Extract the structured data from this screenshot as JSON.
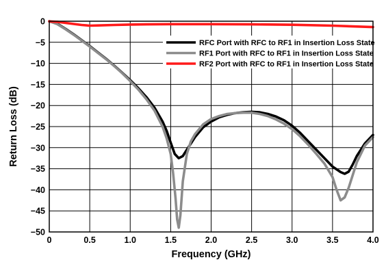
{
  "chart_data": {
    "type": "line",
    "title": "",
    "xlabel": "Frequency (GHz)",
    "ylabel": "Return Loss (dB)",
    "xlim": [
      0,
      4.0
    ],
    "ylim": [
      -50,
      0
    ],
    "x_ticks": [
      "0",
      "0.5",
      "1.0",
      "1.5",
      "2.0",
      "2.5",
      "3.0",
      "3.5",
      "4.0"
    ],
    "y_ticks": [
      "0",
      "−5",
      "−10",
      "−15",
      "−20",
      "−25",
      "−30",
      "−35",
      "−40",
      "−45",
      "−50"
    ],
    "grid": true,
    "legend_position": "top-right",
    "series": [
      {
        "name": "RFC Port with RFC to RF1 in Insertion Loss State",
        "color": "#000000",
        "points": [
          [
            0,
            0
          ],
          [
            0.1,
            -0.6
          ],
          [
            0.2,
            -1.8
          ],
          [
            0.3,
            -3.1
          ],
          [
            0.4,
            -4.5
          ],
          [
            0.5,
            -5.9
          ],
          [
            0.6,
            -7.4
          ],
          [
            0.7,
            -8.9
          ],
          [
            0.8,
            -10.5
          ],
          [
            0.9,
            -12.2
          ],
          [
            1.0,
            -14.0
          ],
          [
            1.1,
            -15.9
          ],
          [
            1.2,
            -18.0
          ],
          [
            1.3,
            -20.5
          ],
          [
            1.4,
            -23.8
          ],
          [
            1.45,
            -26.0
          ],
          [
            1.5,
            -28.8
          ],
          [
            1.55,
            -31.5
          ],
          [
            1.6,
            -32.5
          ],
          [
            1.65,
            -32.0
          ],
          [
            1.7,
            -30.5
          ],
          [
            1.8,
            -27.5
          ],
          [
            1.9,
            -25.2
          ],
          [
            2.0,
            -23.8
          ],
          [
            2.1,
            -22.8
          ],
          [
            2.2,
            -22.2
          ],
          [
            2.3,
            -21.8
          ],
          [
            2.4,
            -21.6
          ],
          [
            2.5,
            -21.5
          ],
          [
            2.6,
            -21.6
          ],
          [
            2.7,
            -22.0
          ],
          [
            2.8,
            -22.6
          ],
          [
            2.9,
            -23.5
          ],
          [
            3.0,
            -24.8
          ],
          [
            3.1,
            -26.5
          ],
          [
            3.2,
            -28.5
          ],
          [
            3.3,
            -30.5
          ],
          [
            3.4,
            -32.5
          ],
          [
            3.5,
            -34.5
          ],
          [
            3.6,
            -35.8
          ],
          [
            3.65,
            -36.2
          ],
          [
            3.7,
            -35.7
          ],
          [
            3.75,
            -34.0
          ],
          [
            3.8,
            -32.0
          ],
          [
            3.9,
            -29.0
          ],
          [
            4.0,
            -27.0
          ]
        ]
      },
      {
        "name": "RF1 Port with RFC to RF1 in Insertion Loss State",
        "color": "#8c8c8c",
        "points": [
          [
            0,
            0
          ],
          [
            0.1,
            -0.7
          ],
          [
            0.2,
            -1.9
          ],
          [
            0.3,
            -3.2
          ],
          [
            0.4,
            -4.6
          ],
          [
            0.5,
            -6.0
          ],
          [
            0.6,
            -7.5
          ],
          [
            0.7,
            -9.0
          ],
          [
            0.8,
            -10.6
          ],
          [
            0.9,
            -12.3
          ],
          [
            1.0,
            -14.2
          ],
          [
            1.1,
            -16.2
          ],
          [
            1.2,
            -18.5
          ],
          [
            1.3,
            -21.2
          ],
          [
            1.4,
            -25.0
          ],
          [
            1.45,
            -27.8
          ],
          [
            1.5,
            -31.5
          ],
          [
            1.53,
            -36.0
          ],
          [
            1.56,
            -42.0
          ],
          [
            1.58,
            -47.0
          ],
          [
            1.6,
            -49.0
          ],
          [
            1.62,
            -46.0
          ],
          [
            1.65,
            -38.0
          ],
          [
            1.7,
            -31.5
          ],
          [
            1.75,
            -28.5
          ],
          [
            1.8,
            -26.8
          ],
          [
            1.9,
            -24.5
          ],
          [
            2.0,
            -23.2
          ],
          [
            2.1,
            -22.5
          ],
          [
            2.2,
            -22.0
          ],
          [
            2.3,
            -21.8
          ],
          [
            2.4,
            -21.7
          ],
          [
            2.5,
            -21.7
          ],
          [
            2.6,
            -22.0
          ],
          [
            2.7,
            -22.5
          ],
          [
            2.8,
            -23.3
          ],
          [
            2.9,
            -24.3
          ],
          [
            3.0,
            -25.6
          ],
          [
            3.1,
            -27.3
          ],
          [
            3.2,
            -29.3
          ],
          [
            3.3,
            -31.5
          ],
          [
            3.4,
            -33.8
          ],
          [
            3.5,
            -37.0
          ],
          [
            3.55,
            -40.0
          ],
          [
            3.6,
            -42.5
          ],
          [
            3.65,
            -41.8
          ],
          [
            3.7,
            -39.5
          ],
          [
            3.75,
            -36.5
          ],
          [
            3.8,
            -33.5
          ],
          [
            3.9,
            -29.5
          ],
          [
            4.0,
            -27.5
          ]
        ]
      },
      {
        "name": "RF2 Port with RFC to RF1 in Insertion Loss State",
        "color": "#ff1a1a",
        "points": [
          [
            0,
            -0.05
          ],
          [
            0.1,
            -0.15
          ],
          [
            0.2,
            -0.4
          ],
          [
            0.3,
            -0.65
          ],
          [
            0.4,
            -0.9
          ],
          [
            0.5,
            -1.05
          ],
          [
            0.6,
            -1.0
          ],
          [
            0.8,
            -0.9
          ],
          [
            1.0,
            -0.8
          ],
          [
            1.2,
            -0.75
          ],
          [
            1.5,
            -0.7
          ],
          [
            2.0,
            -0.7
          ],
          [
            2.5,
            -0.75
          ],
          [
            3.0,
            -0.85
          ],
          [
            3.5,
            -1.05
          ],
          [
            4.0,
            -1.4
          ]
        ]
      }
    ]
  }
}
